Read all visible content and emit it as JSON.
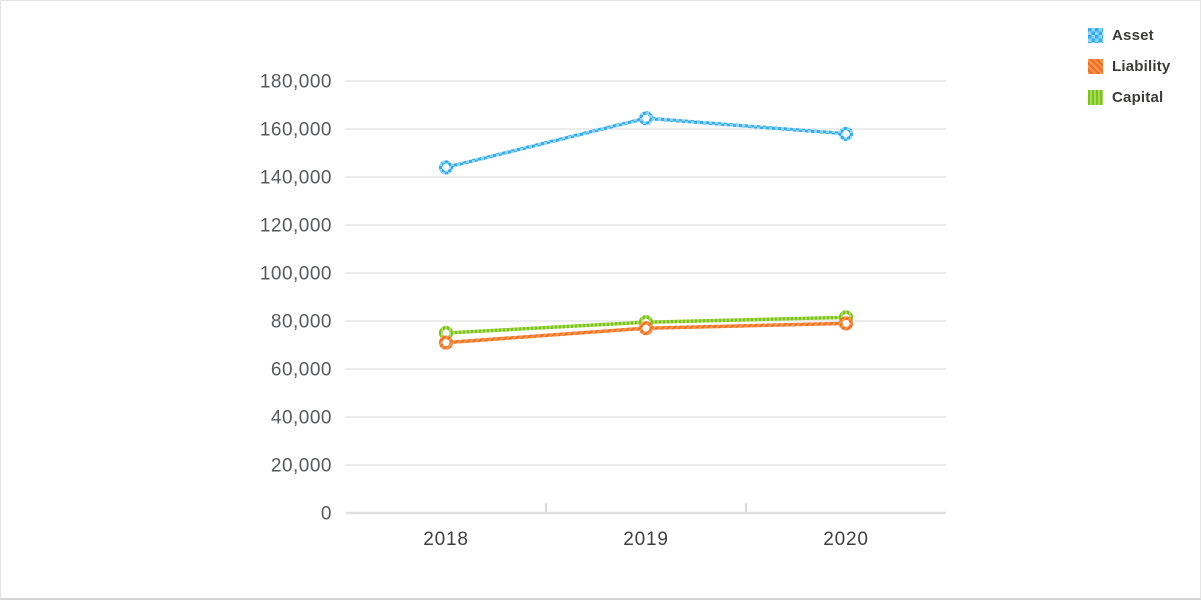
{
  "page": {
    "background": "#ffffff",
    "border_color": "#e4e4e4"
  },
  "legend": {
    "position": "top-right",
    "items": [
      {
        "label": "Asset"
      },
      {
        "label": "Liability"
      },
      {
        "label": "Capital"
      }
    ]
  },
  "chart_data": {
    "type": "line",
    "title": "",
    "xlabel": "",
    "ylabel": "",
    "categories": [
      "2018",
      "2019",
      "2020"
    ],
    "series": [
      {
        "name": "Asset",
        "pattern": "checker",
        "color": "#35acee",
        "color_light": "#8fd3f8",
        "values": [
          144000,
          164500,
          158000
        ]
      },
      {
        "name": "Liability",
        "pattern": "diagonal",
        "color": "#f26e21",
        "color_light": "#f6984e",
        "values": [
          71000,
          77000,
          79000
        ]
      },
      {
        "name": "Capital",
        "pattern": "vertical",
        "color": "#7cc21e",
        "color_light": "#a9db5a",
        "values": [
          75000,
          79500,
          81500
        ]
      }
    ],
    "ylim": [
      0,
      180000
    ],
    "yticks": [
      0,
      20000,
      40000,
      60000,
      80000,
      100000,
      120000,
      140000,
      160000,
      180000
    ],
    "grid": true,
    "legend_position": "top-right",
    "marker": "open-circle",
    "line_style": "patterned-dash",
    "grid_color": "#ececec",
    "axis_line_color": "#e0e0e0",
    "tick_mark_color": "#d9d9d9",
    "ytick_label_color": "#58595b",
    "xtick_label_color": "#3e3e40"
  }
}
